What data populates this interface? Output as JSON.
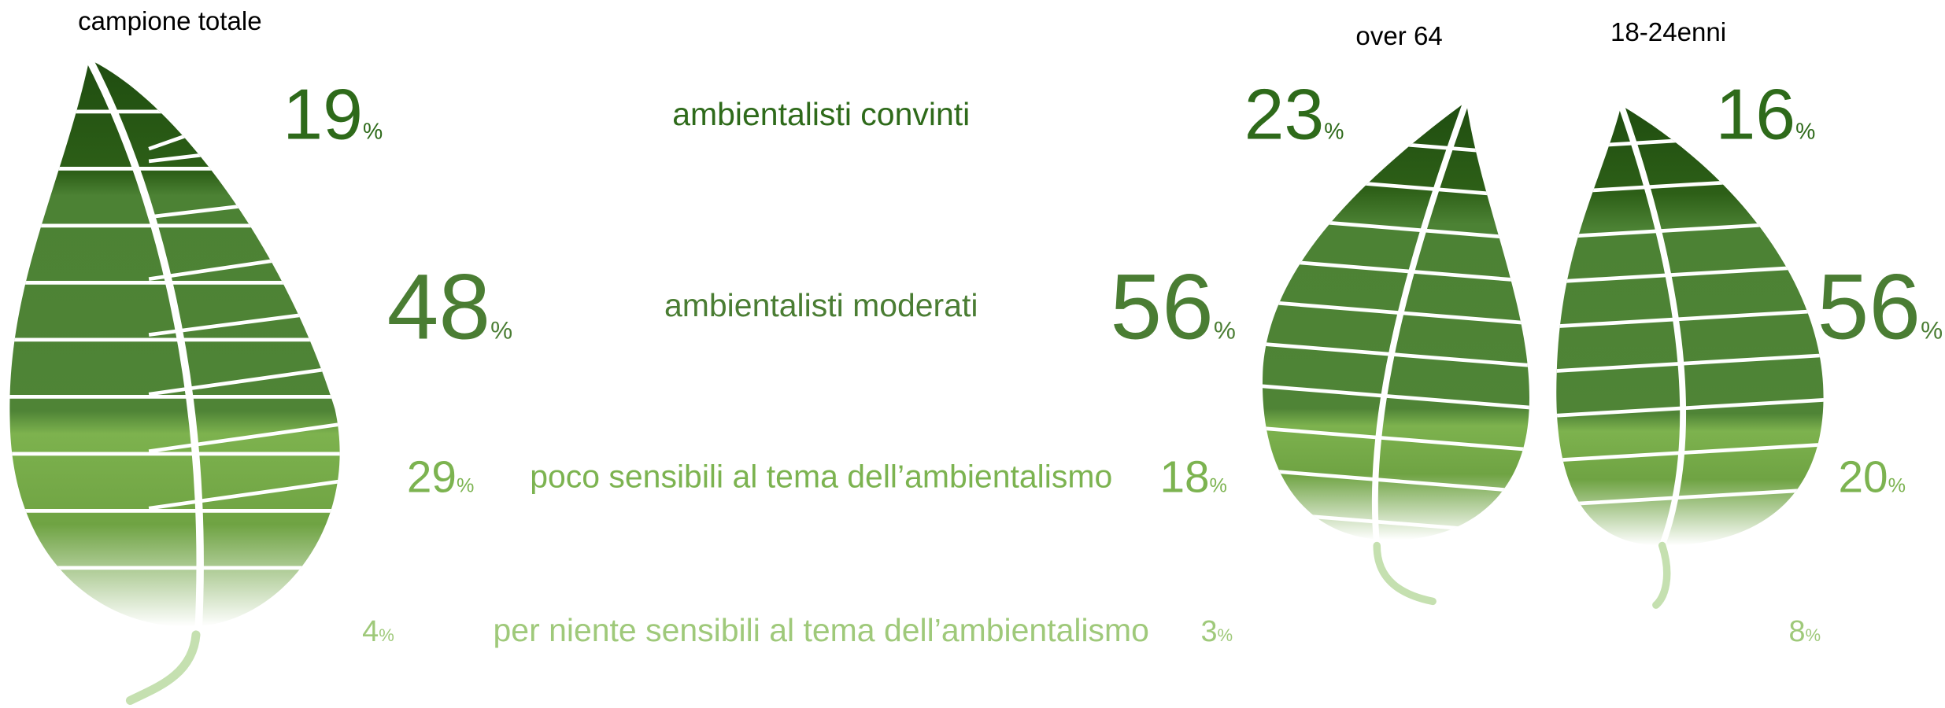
{
  "groups": [
    {
      "label": "campione totale",
      "values": [
        19,
        48,
        29,
        4
      ]
    },
    {
      "label": "over 64",
      "values": [
        23,
        56,
        18,
        3
      ]
    },
    {
      "label": "18-24enni",
      "values": [
        16,
        56,
        20,
        8
      ]
    }
  ],
  "categories": [
    "ambientalisti convinti",
    "ambientalisti moderati",
    "poco sensibili al tema dell’ambientalismo",
    "per niente sensibili al tema dell’ambientalismo"
  ],
  "unit": "%"
}
